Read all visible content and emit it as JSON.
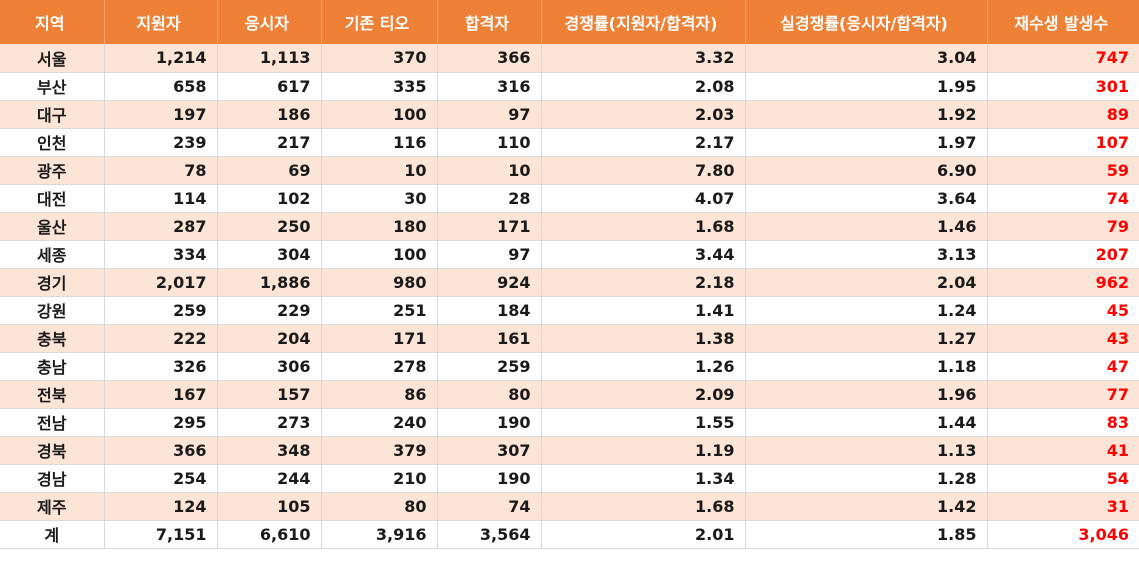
{
  "headers": [
    "지역",
    "지원자",
    "응시자",
    "기존 티오",
    "합격자",
    "경쟁률(지원자/합격자)",
    "실경쟁률(응시자/합격자)",
    "재수생 발생수"
  ],
  "rows": [
    [
      "서울",
      "1,214",
      "1,113",
      "370",
      "366",
      "3.32",
      "3.04",
      "747"
    ],
    [
      "부산",
      "658",
      "617",
      "335",
      "316",
      "2.08",
      "1.95",
      "301"
    ],
    [
      "대구",
      "197",
      "186",
      "100",
      "97",
      "2.03",
      "1.92",
      "89"
    ],
    [
      "인천",
      "239",
      "217",
      "116",
      "110",
      "2.17",
      "1.97",
      "107"
    ],
    [
      "광주",
      "78",
      "69",
      "10",
      "10",
      "7.80",
      "6.90",
      "59"
    ],
    [
      "대전",
      "114",
      "102",
      "30",
      "28",
      "4.07",
      "3.64",
      "74"
    ],
    [
      "울산",
      "287",
      "250",
      "180",
      "171",
      "1.68",
      "1.46",
      "79"
    ],
    [
      "세종",
      "334",
      "304",
      "100",
      "97",
      "3.44",
      "3.13",
      "207"
    ],
    [
      "경기",
      "2,017",
      "1,886",
      "980",
      "924",
      "2.18",
      "2.04",
      "962"
    ],
    [
      "강원",
      "259",
      "229",
      "251",
      "184",
      "1.41",
      "1.24",
      "45"
    ],
    [
      "충북",
      "222",
      "204",
      "171",
      "161",
      "1.38",
      "1.27",
      "43"
    ],
    [
      "충남",
      "326",
      "306",
      "278",
      "259",
      "1.26",
      "1.18",
      "47"
    ],
    [
      "전북",
      "167",
      "157",
      "86",
      "80",
      "2.09",
      "1.96",
      "77"
    ],
    [
      "전남",
      "295",
      "273",
      "240",
      "190",
      "1.55",
      "1.44",
      "83"
    ],
    [
      "경북",
      "366",
      "348",
      "379",
      "307",
      "1.19",
      "1.13",
      "41"
    ],
    [
      "경남",
      "254",
      "244",
      "210",
      "190",
      "1.34",
      "1.28",
      "54"
    ],
    [
      "제주",
      "124",
      "105",
      "80",
      "74",
      "1.68",
      "1.42",
      "31"
    ]
  ],
  "total": [
    "계",
    "7,151",
    "6,610",
    "3,916",
    "3,564",
    "2.01",
    "1.85",
    "3,046"
  ],
  "colors": {
    "header_bg": "#ee8136",
    "header_text": "#ffffff",
    "band_odd": "#fce4d6",
    "band_even": "#ffffff",
    "highlight_text": "#ff0000"
  }
}
